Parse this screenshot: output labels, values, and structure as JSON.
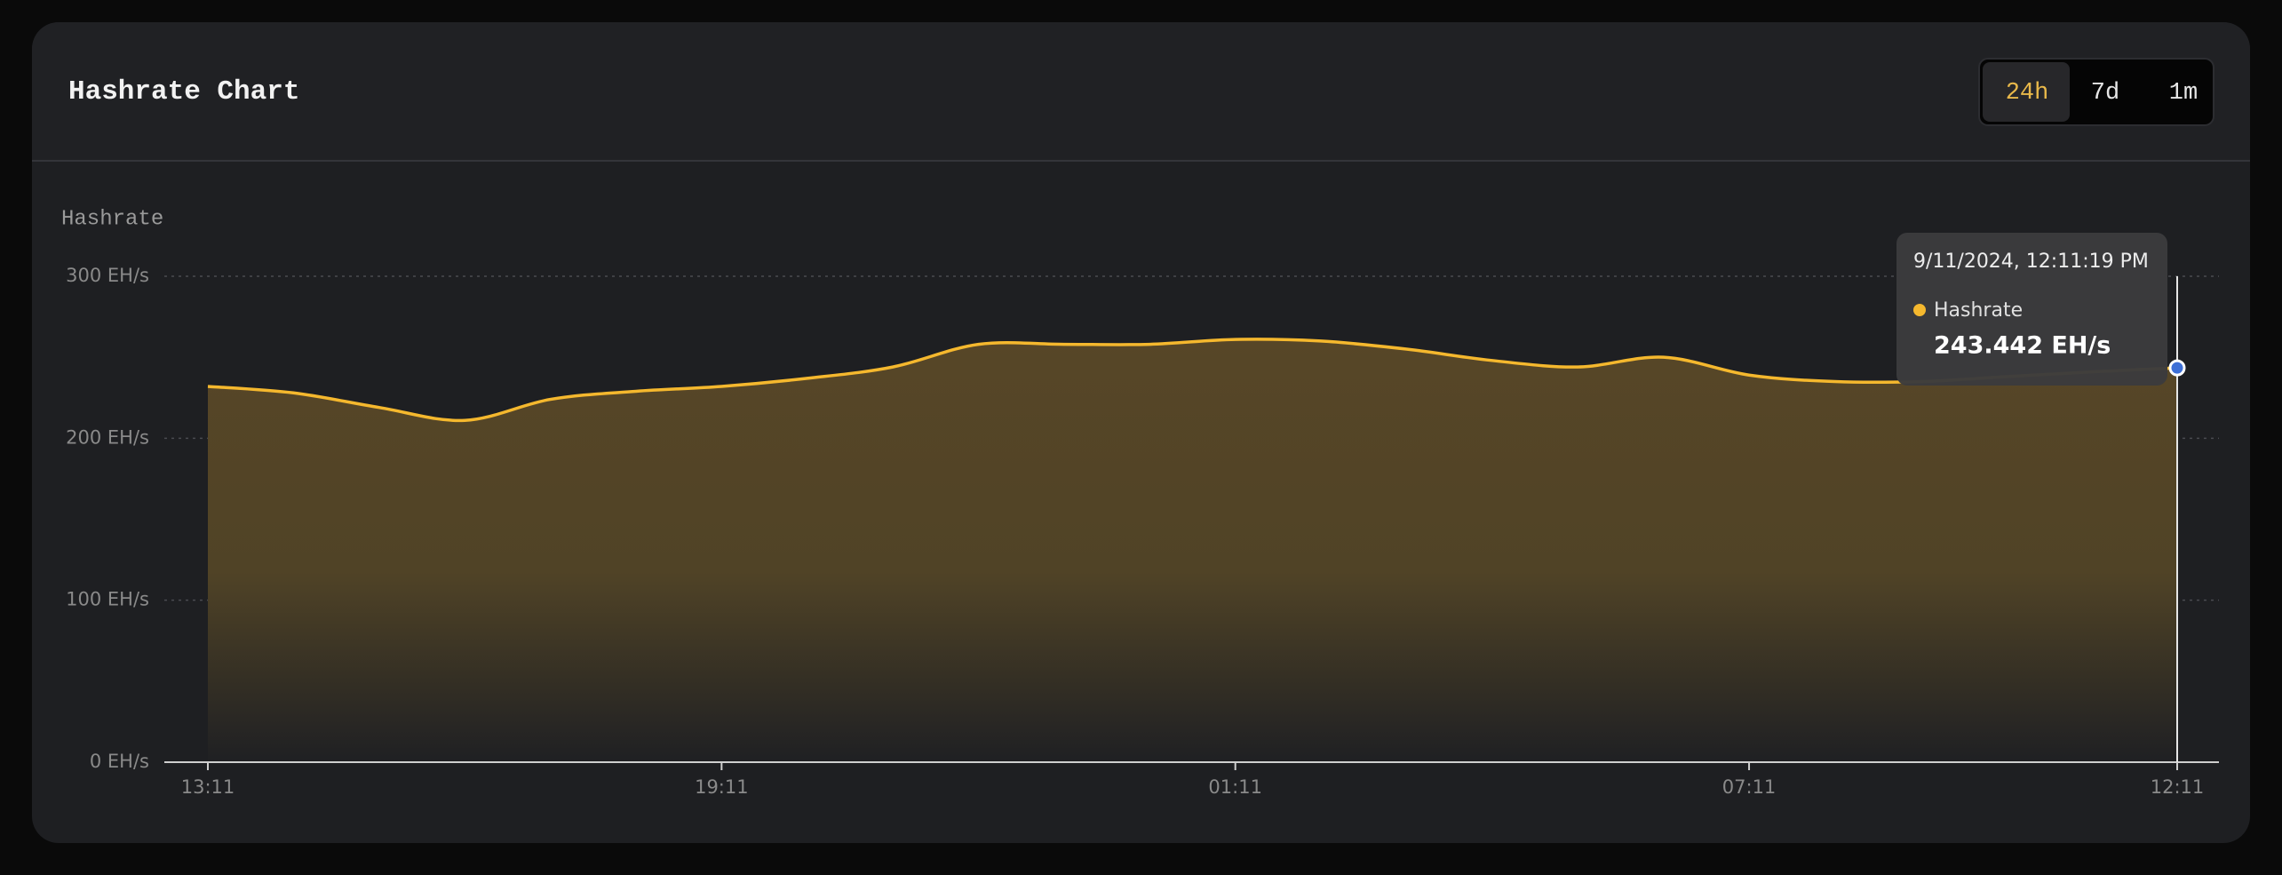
{
  "header": {
    "title": "Hashrate Chart",
    "ranges": [
      "24h",
      "7d",
      "1m"
    ],
    "active_range": "24h"
  },
  "chart_data": {
    "type": "area",
    "y_label": "Hashrate",
    "categories": [
      "13:11",
      null,
      null,
      null,
      null,
      null,
      "19:11",
      null,
      null,
      null,
      null,
      null,
      "01:11",
      null,
      null,
      null,
      null,
      null,
      "07:11",
      null,
      null,
      null,
      null,
      "12:11"
    ],
    "series": [
      {
        "name": "Hashrate",
        "color": "#f5b82e",
        "values": [
          232,
          228,
          219,
          211,
          224,
          229,
          232,
          237,
          244,
          258,
          258,
          258,
          261,
          260,
          255,
          248,
          244,
          250,
          239,
          235,
          235,
          238,
          241,
          243.442
        ]
      }
    ],
    "ylim": [
      0,
      300
    ],
    "yticks": [
      {
        "value": 0,
        "label": "0 EH/s"
      },
      {
        "value": 100,
        "label": "100 EH/s"
      },
      {
        "value": 200,
        "label": "200 EH/s"
      },
      {
        "value": 300,
        "label": "300 EH/s"
      }
    ],
    "grid": true,
    "tooltip": {
      "title": "9/11/2024, 12:11:19 PM",
      "index": 23,
      "value_label": "243.442 EH/s"
    }
  }
}
